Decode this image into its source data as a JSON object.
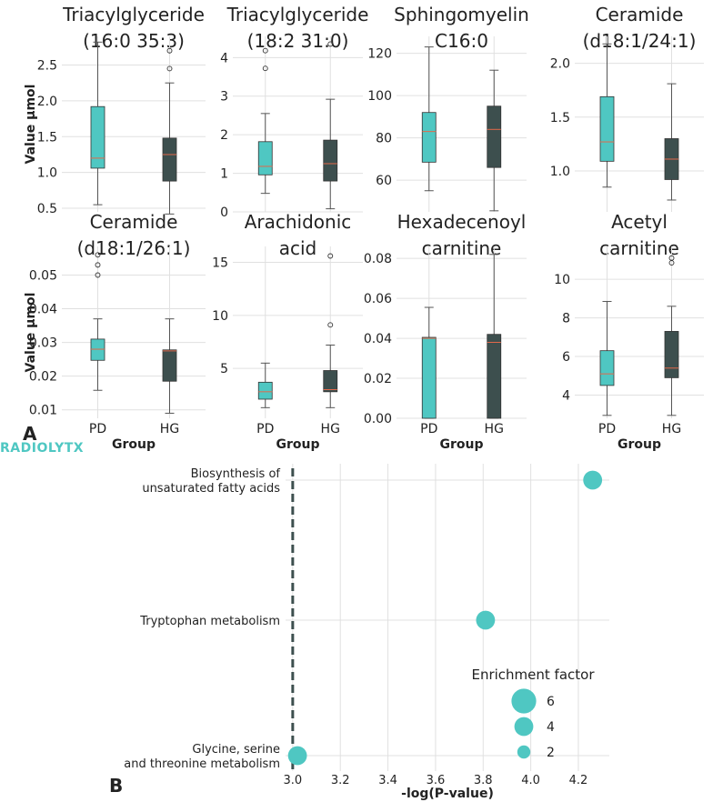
{
  "chart_data": [
    {
      "type": "box",
      "title": [
        "Triacylglyceride",
        "(16:0 35:3)"
      ],
      "ylabel": "Value μmol",
      "yticks": [
        0.5,
        1.0,
        1.5,
        2.0,
        2.5
      ],
      "ytick_labels": [
        "0.5",
        "1.0",
        "1.5",
        "2.0",
        "2.5"
      ],
      "ylim": [
        0.45,
        2.9
      ],
      "groups": [
        {
          "name": "PD",
          "whisker_low": 0.55,
          "q1": 1.06,
          "median": 1.2,
          "q3": 1.92,
          "whisker_high": 2.82,
          "outliers": []
        },
        {
          "name": "HG",
          "whisker_low": 0.42,
          "q1": 0.88,
          "median": 1.25,
          "q3": 1.48,
          "whisker_high": 2.25,
          "outliers": [
            2.45,
            2.7
          ]
        }
      ]
    },
    {
      "type": "box",
      "title": [
        "Triacylglyceride",
        "(18:2 31:0)"
      ],
      "ylabel": "",
      "yticks": [
        0,
        1,
        2,
        3,
        4
      ],
      "ytick_labels": [
        "0",
        "1",
        "2",
        "3",
        "4"
      ],
      "ylim": [
        0,
        4.55
      ],
      "groups": [
        {
          "name": "PD",
          "whisker_low": 0.48,
          "q1": 0.96,
          "median": 1.18,
          "q3": 1.82,
          "whisker_high": 2.55,
          "outliers": [
            3.72,
            4.18
          ]
        },
        {
          "name": "HG",
          "whisker_low": 0.08,
          "q1": 0.8,
          "median": 1.25,
          "q3": 1.86,
          "whisker_high": 2.92,
          "outliers": [
            4.35
          ]
        }
      ]
    },
    {
      "type": "box",
      "title": [
        "Sphingomyelin",
        "C16:0"
      ],
      "ylabel": "",
      "yticks": [
        60,
        80,
        100,
        120
      ],
      "ytick_labels": [
        "60",
        "80",
        "100",
        "120"
      ],
      "ylim": [
        45,
        128
      ],
      "groups": [
        {
          "name": "PD",
          "whisker_low": 55,
          "q1": 68.5,
          "median": 83,
          "q3": 92,
          "whisker_high": 123,
          "outliers": []
        },
        {
          "name": "HG",
          "whisker_low": 45.5,
          "q1": 66,
          "median": 84,
          "q3": 95,
          "whisker_high": 112,
          "outliers": []
        }
      ]
    },
    {
      "type": "box",
      "title": [
        "Ceramide",
        "(d18:1/24:1)"
      ],
      "ylabel": "",
      "yticks": [
        1.0,
        1.5,
        2.0
      ],
      "ytick_labels": [
        "1.0",
        "1.5",
        "2.0"
      ],
      "ylim": [
        0.62,
        2.25
      ],
      "groups": [
        {
          "name": "PD",
          "whisker_low": 0.85,
          "q1": 1.09,
          "median": 1.27,
          "q3": 1.69,
          "whisker_high": 2.18,
          "outliers": []
        },
        {
          "name": "HG",
          "whisker_low": 0.73,
          "q1": 0.92,
          "median": 1.11,
          "q3": 1.3,
          "whisker_high": 1.81,
          "outliers": []
        }
      ]
    },
    {
      "type": "box",
      "title": [
        "Ceramide",
        "(d18:1/26:1)"
      ],
      "ylabel": "Value μmol",
      "yticks": [
        0.01,
        0.02,
        0.03,
        0.04,
        0.05
      ],
      "ytick_labels": [
        "0.01",
        "0.02",
        "0.03",
        "0.04",
        "0.05"
      ],
      "ylim": [
        0.0075,
        0.0585
      ],
      "groups": [
        {
          "name": "PD",
          "whisker_low": 0.0158,
          "q1": 0.0247,
          "median": 0.028,
          "q3": 0.031,
          "whisker_high": 0.037,
          "outliers": [
            0.05,
            0.053,
            0.056
          ]
        },
        {
          "name": "HG",
          "whisker_low": 0.009,
          "q1": 0.0185,
          "median": 0.0275,
          "q3": 0.0278,
          "whisker_high": 0.037,
          "outliers": []
        }
      ]
    },
    {
      "type": "box",
      "title": [
        "Arachidonic",
        "acid"
      ],
      "ylabel": "",
      "yticks": [
        5,
        10,
        15
      ],
      "ytick_labels": [
        "5",
        "10",
        "15"
      ],
      "ylim": [
        0.3,
        16.5
      ],
      "groups": [
        {
          "name": "PD",
          "whisker_low": 1.3,
          "q1": 2.1,
          "median": 2.8,
          "q3": 3.7,
          "whisker_high": 5.5,
          "outliers": []
        },
        {
          "name": "HG",
          "whisker_low": 1.3,
          "q1": 2.8,
          "median": 3.0,
          "q3": 4.8,
          "whisker_high": 7.2,
          "outliers": [
            9.1,
            15.6
          ]
        }
      ]
    },
    {
      "type": "box",
      "title": [
        "Hexadecenoyl",
        "carnitine"
      ],
      "ylabel": "",
      "yticks": [
        0.0,
        0.02,
        0.04,
        0.06,
        0.08
      ],
      "ytick_labels": [
        "0.00",
        "0.02",
        "0.04",
        "0.06",
        "0.08"
      ],
      "ylim": [
        0,
        0.086
      ],
      "groups": [
        {
          "name": "PD",
          "whisker_low": 0.0,
          "q1": 0.0,
          "median": 0.04,
          "q3": 0.0405,
          "whisker_high": 0.0555,
          "outliers": []
        },
        {
          "name": "HG",
          "whisker_low": 0.0,
          "q1": 0.0,
          "median": 0.038,
          "q3": 0.042,
          "whisker_high": 0.082,
          "outliers": []
        }
      ]
    },
    {
      "type": "box",
      "title": [
        "Acetyl",
        "carnitine"
      ],
      "ylabel": "",
      "yticks": [
        4,
        6,
        8,
        10
      ],
      "ytick_labels": [
        "4",
        "6",
        "8",
        "10"
      ],
      "ylim": [
        2.8,
        11.7
      ],
      "groups": [
        {
          "name": "PD",
          "whisker_low": 2.95,
          "q1": 4.5,
          "median": 5.1,
          "q3": 6.3,
          "whisker_high": 8.85,
          "outliers": []
        },
        {
          "name": "HG",
          "whisker_low": 2.95,
          "q1": 4.9,
          "median": 5.4,
          "q3": 7.3,
          "whisker_high": 8.6,
          "outliers": [
            10.85,
            11.1
          ]
        }
      ]
    },
    {
      "type": "scatter",
      "xlabel": "-log(P-value)",
      "xticks": [
        3.0,
        3.2,
        3.4,
        3.6,
        3.8,
        4.0,
        4.2
      ],
      "xtick_labels": [
        "3.0",
        "3.2",
        "3.4",
        "3.6",
        "3.8",
        "4.0",
        "4.2"
      ],
      "xlim": [
        2.97,
        4.33
      ],
      "threshold_x": 3.0,
      "categories": [
        "Biosynthesis of\nunsaturated fatty acids",
        "Tryptophan metabolism",
        "Glycine, serine\nand threonine metabolism"
      ],
      "points": [
        {
          "category": "Biosynthesis of\nunsaturated fatty acids",
          "x": 4.26,
          "size": 4
        },
        {
          "category": "Tryptophan metabolism",
          "x": 3.81,
          "size": 4
        },
        {
          "category": "Glycine, serine\nand threonine metabolism",
          "x": 3.02,
          "size": 4
        }
      ],
      "legend": {
        "title": "Enrichment factor",
        "entries": [
          {
            "label": "6",
            "size": 6
          },
          {
            "label": "4",
            "size": 4
          },
          {
            "label": "2",
            "size": 2
          }
        ],
        "placement": "bottom-right"
      }
    }
  ],
  "shared": {
    "xlabel": "Group",
    "ylabel": "Value μmol",
    "panel_labels": [
      "A",
      "B"
    ],
    "logo_text": "RADIOLYTX"
  },
  "colors": {
    "pd_box": "#4fc7c2",
    "hg_box": "#3d4f4e",
    "median": "#e2694a",
    "grid": "#e0e0e0",
    "dot": "#4fc7c2",
    "threshold": "#3d4f4e"
  }
}
